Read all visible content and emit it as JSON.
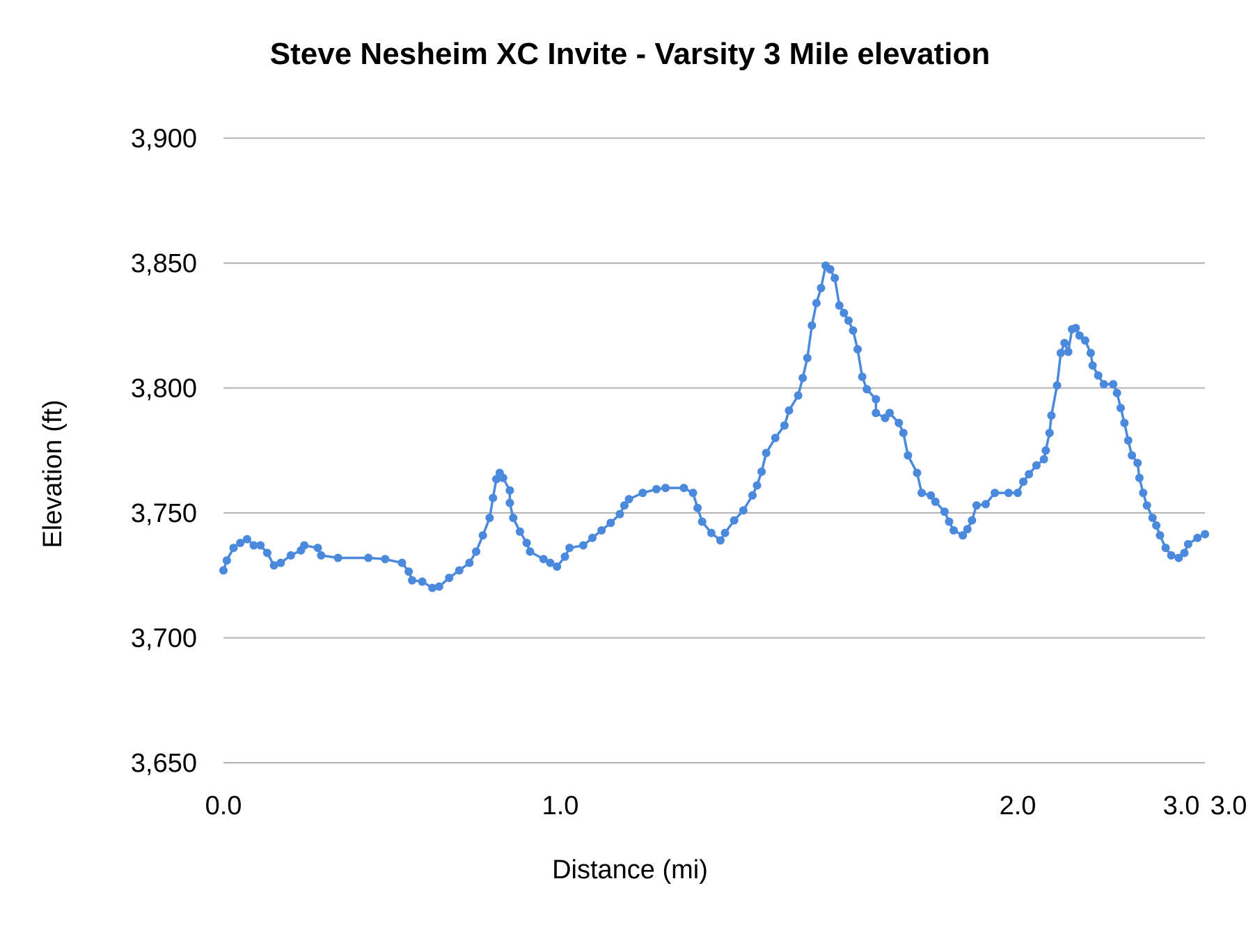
{
  "chart_data": {
    "type": "line",
    "title": "Steve Nesheim XC Invite - Varsity 3 Mile elevation",
    "xlabel": "Distance (mi)",
    "ylabel": "Elevation (ft)",
    "ylim": [
      3650,
      3900
    ],
    "yticks": [
      "3,650",
      "3,700",
      "3,750",
      "3,800",
      "3,850",
      "3,900"
    ],
    "ytick_values": [
      3650,
      3700,
      3750,
      3800,
      3850,
      3900
    ],
    "xticks": [
      "0.0",
      "1.0",
      "2.0",
      "3.0",
      "3.0"
    ],
    "xtick_values": [
      0,
      1,
      2,
      3,
      3
    ],
    "grid": "horizontal",
    "legend": "none",
    "markers": true,
    "color": "#4a89dc",
    "series": [
      {
        "x": [
          0.0,
          0.01,
          0.03,
          0.05,
          0.07,
          0.09,
          0.11,
          0.13,
          0.15,
          0.17,
          0.2,
          0.23,
          0.24,
          0.28,
          0.29,
          0.34,
          0.43,
          0.48,
          0.53,
          0.55,
          0.56,
          0.59,
          0.62,
          0.64,
          0.67,
          0.7,
          0.73,
          0.75,
          0.77,
          0.79,
          0.8,
          0.81,
          0.82,
          0.83,
          0.85,
          0.85,
          0.86,
          0.88,
          0.9,
          0.91,
          0.95,
          0.97,
          0.99,
          1.01,
          1.02,
          1.05,
          1.07,
          1.09,
          1.11,
          1.13,
          1.14,
          1.15,
          1.18,
          1.21,
          1.23,
          1.27,
          1.29,
          1.3,
          1.31,
          1.33,
          1.35,
          1.36,
          1.38,
          1.4,
          1.42,
          1.43,
          1.44,
          1.45,
          1.47,
          1.49,
          1.5,
          1.52,
          1.53,
          1.54,
          1.55,
          1.56,
          1.57,
          1.58,
          1.59,
          1.6,
          1.61,
          1.62,
          1.63,
          1.64,
          1.65,
          1.66,
          1.67,
          1.69,
          1.69,
          1.71,
          1.72,
          1.74,
          1.75,
          1.76,
          1.78,
          1.79,
          1.81,
          1.82,
          1.84,
          1.85,
          1.86,
          1.88,
          1.89,
          1.9,
          1.91,
          1.93,
          1.95,
          1.98,
          2.0,
          2.03,
          2.06,
          2.1,
          2.14,
          2.15,
          2.17,
          2.18,
          2.21,
          2.23,
          2.25,
          2.27,
          2.29,
          2.31,
          2.33,
          2.36,
          2.39,
          2.4,
          2.43,
          2.46,
          2.51,
          2.53,
          2.55,
          2.57,
          2.59,
          2.61,
          2.64,
          2.65,
          2.67,
          2.69,
          2.72,
          2.74,
          2.76,
          2.79,
          2.82,
          2.86,
          2.89,
          2.91,
          2.96,
          3.0
        ],
        "y": [
          3727,
          3731,
          3736,
          3738,
          3739.5,
          3737,
          3737,
          3734,
          3729,
          3730,
          3733,
          3735,
          3737,
          3736,
          3733,
          3732,
          3732,
          3731.5,
          3730,
          3726.5,
          3723,
          3722.5,
          3720,
          3720.5,
          3724,
          3727,
          3730,
          3734.5,
          3741,
          3748,
          3756,
          3763.5,
          3766,
          3764,
          3759,
          3754,
          3748,
          3742.5,
          3738,
          3734.5,
          3731.5,
          3730,
          3728.5,
          3732.5,
          3736,
          3737,
          3740,
          3743,
          3746,
          3749.5,
          3753,
          3755.5,
          3758,
          3759.5,
          3760,
          3760,
          3758,
          3752,
          3746.5,
          3742,
          3739,
          3742,
          3747,
          3751,
          3757,
          3761,
          3766.5,
          3774,
          3780,
          3785,
          3791,
          3797,
          3804,
          3812,
          3825,
          3834,
          3840,
          3849,
          3847.5,
          3844,
          3833,
          3830,
          3827,
          3823,
          3815.5,
          3804.5,
          3799.5,
          3795.5,
          3790,
          3788,
          3790,
          3786,
          3782,
          3773,
          3766,
          3758,
          3757,
          3754.5,
          3750.5,
          3746.5,
          3743,
          3741,
          3743.5,
          3747,
          3753,
          3753.5,
          3758,
          3758,
          3758,
          3762.5,
          3765.5,
          3769,
          3771.5,
          3775,
          3782,
          3789,
          3801,
          3814,
          3818,
          3814.5,
          3823.5,
          3824,
          3821,
          3819,
          3814,
          3809,
          3805,
          3801.5,
          3801.5,
          3798,
          3792,
          3786,
          3779,
          3773,
          3770,
          3764,
          3758,
          3753,
          3748,
          3745,
          3741,
          3736,
          3733,
          3732,
          3734,
          3737.5,
          3740,
          3741.5
        ]
      }
    ]
  }
}
